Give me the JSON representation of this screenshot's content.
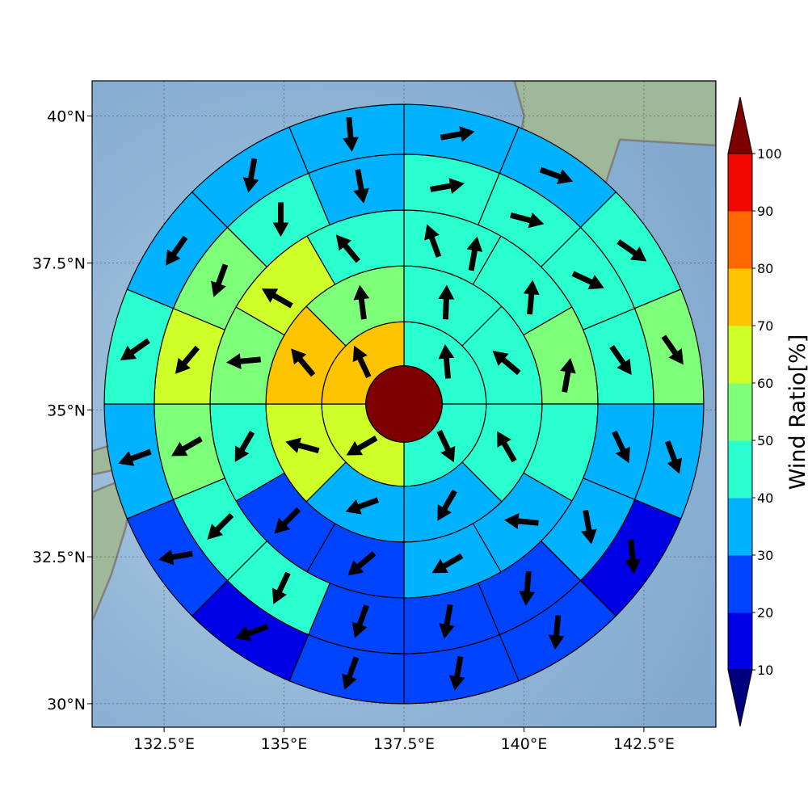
{
  "chart_data": {
    "type": "heatmap",
    "projection": "polar-sector map (lon/lat)",
    "xlim": [
      131.0,
      144.0
    ],
    "ylim": [
      29.6,
      40.6
    ],
    "x_ticks": [
      132.5,
      135,
      137.5,
      140,
      142.5
    ],
    "x_tick_labels": [
      "132.5°E",
      "135°E",
      "137.5°E",
      "140°E",
      "142.5°E"
    ],
    "y_ticks": [
      30,
      32.5,
      35,
      37.5,
      40
    ],
    "y_tick_labels": [
      "30°N",
      "32.5°N",
      "35°N",
      "37.5°N",
      "40°N"
    ],
    "center": {
      "lon": 137.5,
      "lat": 35.1
    },
    "ring_radii_deg": [
      0.65,
      1.4,
      2.35,
      3.3,
      4.25,
      5.1
    ],
    "center_value": 100,
    "sectors_per_ring": [
      4,
      8,
      12,
      16,
      16
    ],
    "ring_start_angle_deg": [
      0,
      0,
      0,
      0,
      0
    ],
    "rings": [
      {
        "values": [
          45,
          45,
          65,
          75
        ],
        "arrows_deg": [
          95,
          295,
          210,
          115
        ]
      },
      {
        "values": [
          45,
          45,
          45,
          35,
          35,
          65,
          75,
          55
        ],
        "arrows_deg": [
          88,
          140,
          120,
          240,
          200,
          165,
          130,
          97
        ]
      },
      {
        "values": [
          45,
          45,
          55,
          45,
          35,
          35,
          25,
          25,
          45,
          55,
          65,
          45
        ],
        "arrows_deg": [
          80,
          85,
          80,
          175,
          210,
          220,
          225,
          240,
          185,
          150,
          130,
          110
        ],
        "arrow_pos_deg": [
          65,
          40,
          10,
          315,
          285,
          255,
          225,
          195,
          165,
          140,
          110,
          80
        ]
      },
      {
        "values": [
          45,
          45,
          45,
          45,
          35,
          35,
          25,
          25,
          25,
          45,
          45,
          55,
          65,
          55,
          45,
          35
        ],
        "arrows_deg": [
          10,
          -15,
          -25,
          -55,
          -65,
          -80,
          -95,
          -100,
          -110,
          -115,
          -135,
          -150,
          -130,
          -110,
          -90,
          -80
        ]
      },
      {
        "values": [
          35,
          35,
          45,
          55,
          35,
          15,
          25,
          25,
          25,
          15,
          25,
          35,
          45,
          35,
          35,
          35
        ],
        "arrows_deg": [
          10,
          -20,
          -35,
          -55,
          -70,
          -85,
          -95,
          -100,
          -110,
          -160,
          -170,
          -160,
          -145,
          -125,
          -100,
          -85
        ]
      }
    ],
    "colorbar": {
      "title": "Wind Ratio[%]",
      "tick_values": [
        10,
        20,
        30,
        40,
        50,
        60,
        70,
        80,
        90,
        100
      ],
      "tick_labels": [
        "10",
        "20",
        "30",
        "40",
        "50",
        "60",
        "70",
        "80",
        "90",
        "100"
      ],
      "bins": [
        {
          "range": [
            0,
            10
          ],
          "color": "#00007f"
        },
        {
          "range": [
            10,
            20
          ],
          "color": "#0000e6"
        },
        {
          "range": [
            20,
            30
          ],
          "color": "#0044ff"
        },
        {
          "range": [
            30,
            40
          ],
          "color": "#00b2ff"
        },
        {
          "range": [
            40,
            50
          ],
          "color": "#29ffce"
        },
        {
          "range": [
            50,
            60
          ],
          "color": "#7dff7a"
        },
        {
          "range": [
            60,
            70
          ],
          "color": "#ceff29"
        },
        {
          "range": [
            70,
            80
          ],
          "color": "#ffc400"
        },
        {
          "range": [
            80,
            90
          ],
          "color": "#ff6800"
        },
        {
          "range": [
            90,
            100
          ],
          "color": "#f10800"
        },
        {
          "range": [
            100,
            110
          ],
          "color": "#7f0000"
        }
      ],
      "extend": "both"
    },
    "ocean_color": "#8db2d4",
    "land_color": "#9fb89a",
    "coastline_color": "#808080",
    "grid": true
  }
}
